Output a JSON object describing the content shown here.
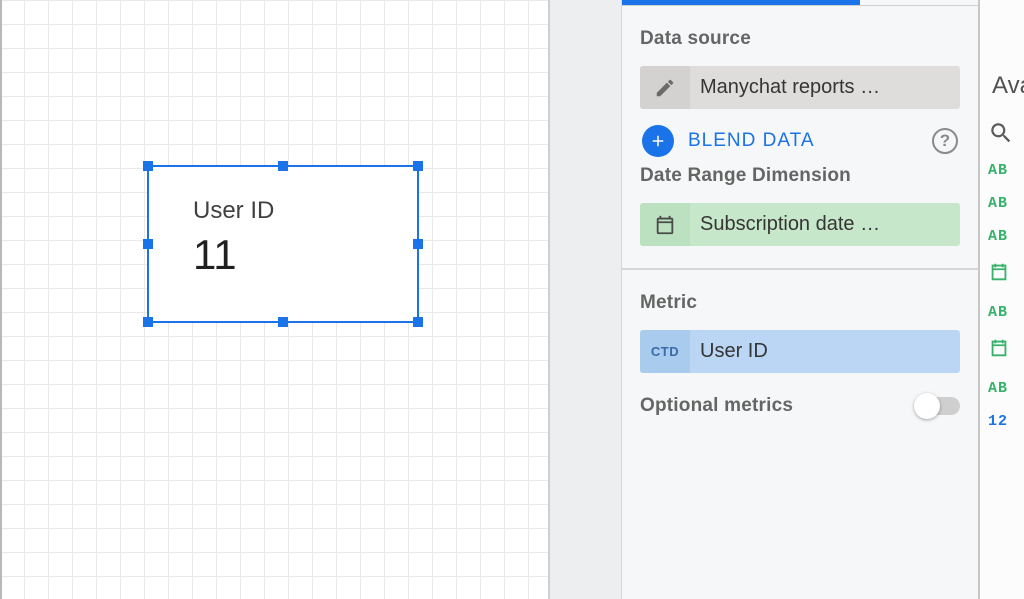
{
  "canvas": {
    "scorecard": {
      "title": "User ID",
      "value": "11",
      "selection_color": "#1a73e8"
    }
  },
  "config": {
    "data_source_label": "Data source",
    "data_source_chip": "Manychat reports …",
    "blend_data_label": "BLEND DATA",
    "date_range_label": "Date Range Dimension",
    "date_range_chip": "Subscription date …",
    "metric_label": "Metric",
    "metric_badge": "CTD",
    "metric_chip": "User ID",
    "optional_metrics_label": "Optional metrics",
    "optional_metrics_on": false,
    "accent_color": "#1a73e8",
    "chip_green_bg": "#c7e7cb",
    "chip_blue_bg": "#bad6f4",
    "chip_grey_bg": "#dedddb"
  },
  "fields": {
    "heading": "Ava",
    "items": [
      {
        "label": "AB",
        "type": "text"
      },
      {
        "label": "AB",
        "type": "text"
      },
      {
        "label": "AB",
        "type": "text"
      },
      {
        "label": "cal",
        "type": "calendar"
      },
      {
        "label": "AB",
        "type": "text"
      },
      {
        "label": "cal",
        "type": "calendar"
      },
      {
        "label": "AB",
        "type": "text"
      },
      {
        "label": "12",
        "type": "number"
      }
    ]
  }
}
